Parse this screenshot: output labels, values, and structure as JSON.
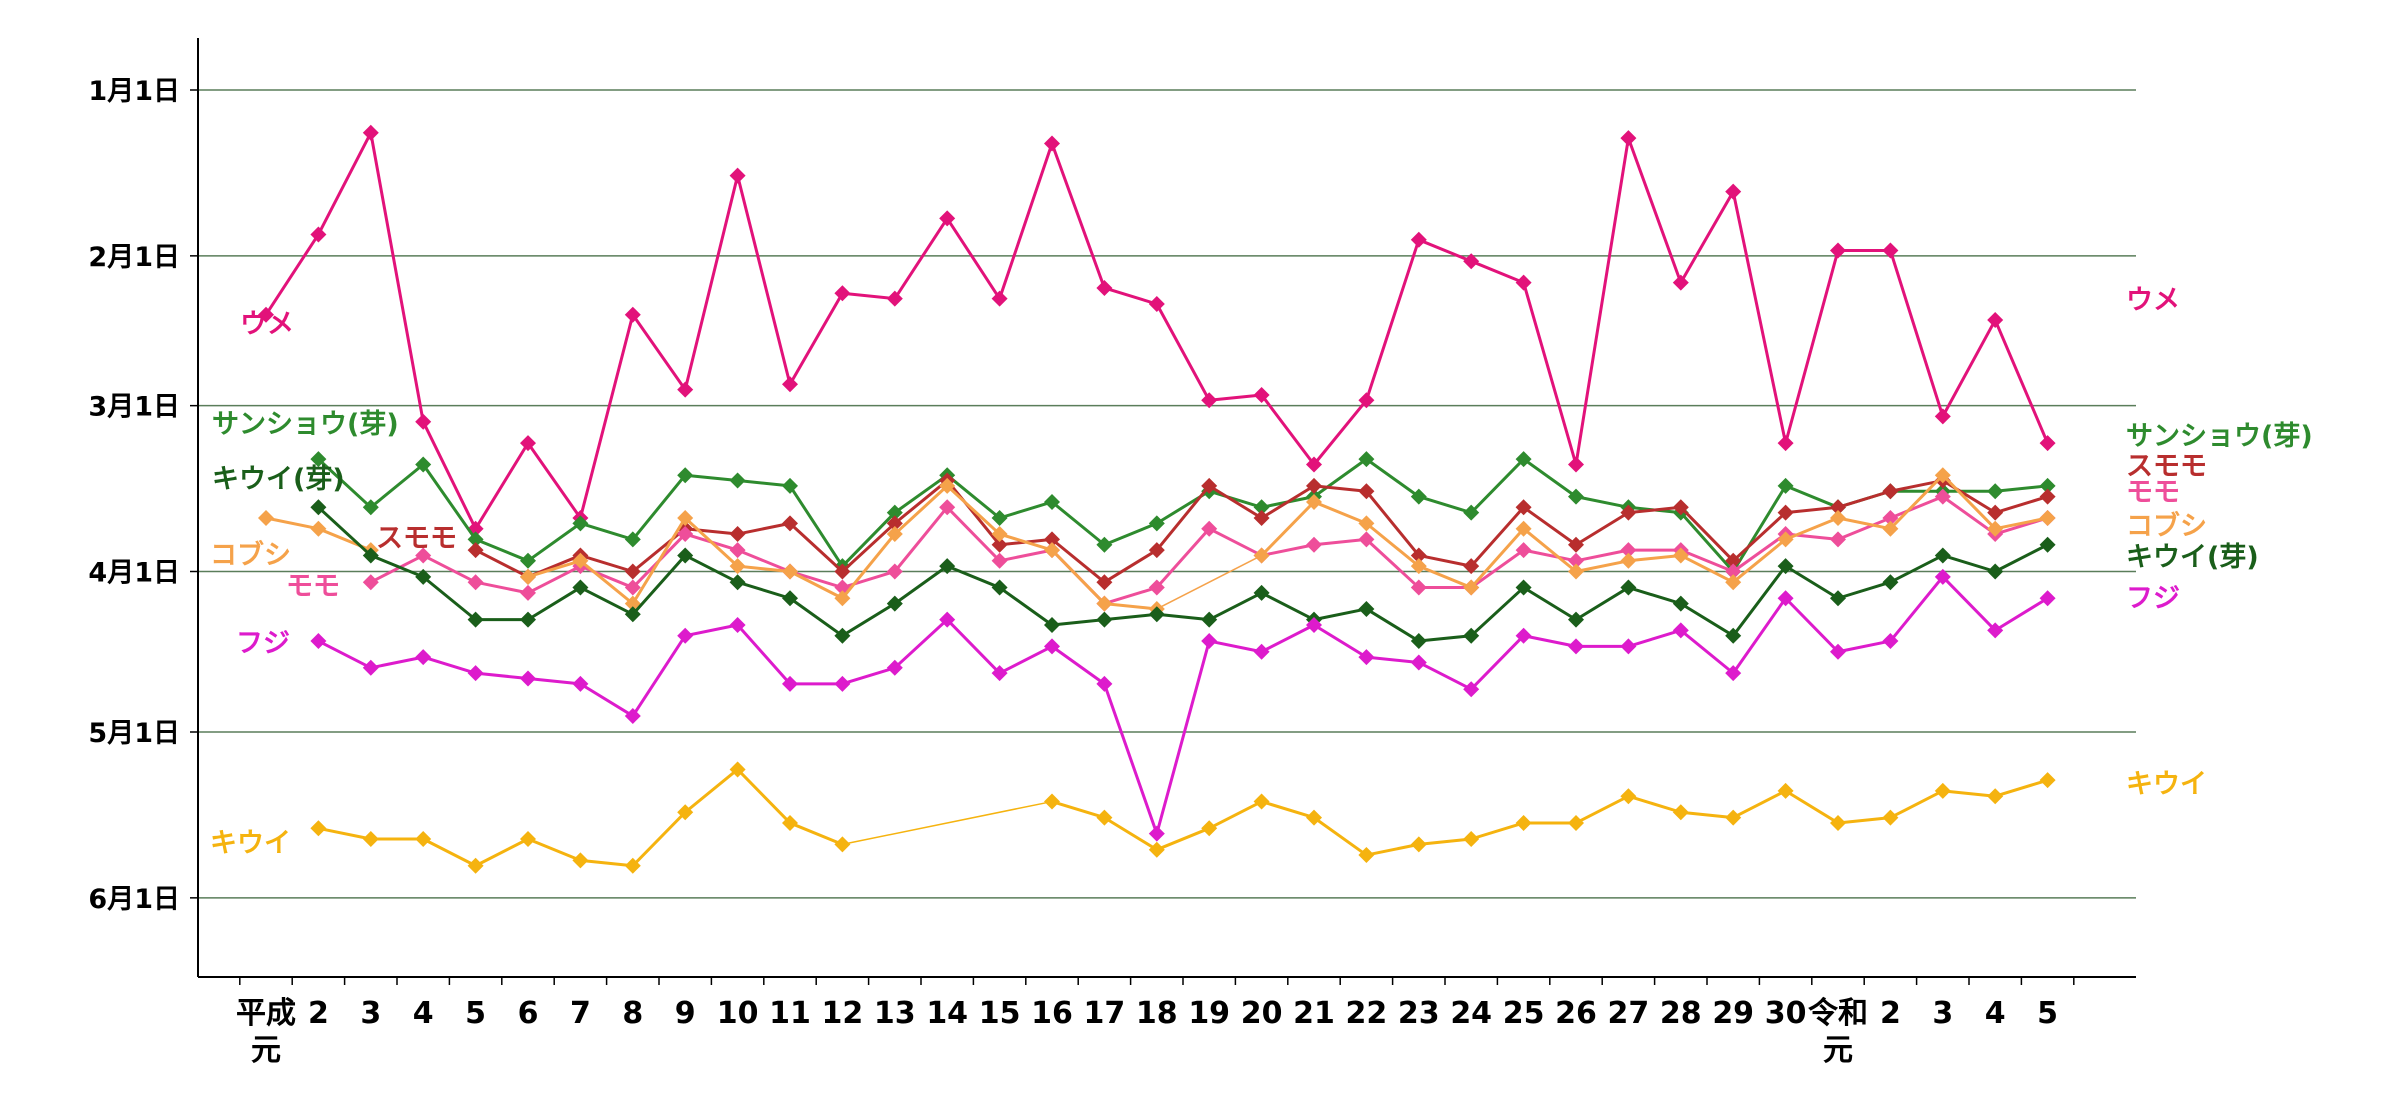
{
  "chart_data": {
    "type": "line",
    "y_axis": {
      "range": [
        "12-22",
        "06-20"
      ],
      "ticks": [
        {
          "label": "1月1日",
          "date": "01-01"
        },
        {
          "label": "2月1日",
          "date": "02-01"
        },
        {
          "label": "3月1日",
          "date": "03-01"
        },
        {
          "label": "4月1日",
          "date": "04-01"
        },
        {
          "label": "5月1日",
          "date": "05-01"
        },
        {
          "label": "6月1日",
          "date": "06-01"
        }
      ]
    },
    "x_axis": {
      "categories": [
        "平成元",
        "2",
        "3",
        "4",
        "5",
        "6",
        "7",
        "8",
        "9",
        "10",
        "11",
        "12",
        "13",
        "14",
        "15",
        "16",
        "17",
        "18",
        "19",
        "20",
        "21",
        "22",
        "23",
        "24",
        "25",
        "26",
        "27",
        "28",
        "29",
        "30",
        "令和元",
        "2",
        "3",
        "4",
        "5"
      ],
      "tick_labels": [
        {
          "line1": "平成",
          "line2": "元"
        },
        {
          "line1": "2"
        },
        {
          "line1": "3"
        },
        {
          "line1": "4"
        },
        {
          "line1": "5"
        },
        {
          "line1": "6"
        },
        {
          "line1": "7"
        },
        {
          "line1": "8"
        },
        {
          "line1": "9"
        },
        {
          "line1": "10"
        },
        {
          "line1": "11"
        },
        {
          "line1": "12"
        },
        {
          "line1": "13"
        },
        {
          "line1": "14"
        },
        {
          "line1": "15"
        },
        {
          "line1": "16"
        },
        {
          "line1": "17"
        },
        {
          "line1": "18"
        },
        {
          "line1": "19"
        },
        {
          "line1": "20"
        },
        {
          "line1": "21"
        },
        {
          "line1": "22"
        },
        {
          "line1": "23"
        },
        {
          "line1": "24"
        },
        {
          "line1": "25"
        },
        {
          "line1": "26"
        },
        {
          "line1": "27"
        },
        {
          "line1": "28"
        },
        {
          "line1": "29"
        },
        {
          "line1": "30"
        },
        {
          "line1": "令和",
          "line2": "元"
        },
        {
          "line1": "2"
        },
        {
          "line1": "3"
        },
        {
          "line1": "4"
        },
        {
          "line1": "5"
        }
      ]
    },
    "grid": "horizontal",
    "series": [
      {
        "name": "ウメ",
        "color": "#e2127a",
        "values": [
          "02-12",
          "01-28",
          "01-09",
          "03-04",
          "03-24",
          "03-08",
          "03-22",
          "02-12",
          "02-26",
          "01-17",
          "02-25",
          "02-08",
          "02-09",
          "01-25",
          "02-09",
          "01-11",
          "02-07",
          "02-10",
          "02-28",
          "02-27",
          "03-12",
          "02-28",
          "01-29",
          "02-02",
          "02-06",
          "03-12",
          "01-10",
          "02-06",
          "01-20",
          "03-08",
          "01-31",
          "01-31",
          "03-03",
          "02-13",
          "03-08"
        ]
      },
      {
        "name": "サンショウ(芽)",
        "color": "#2e8b2e",
        "values": [
          null,
          "03-11",
          "03-20",
          "03-12",
          "03-26",
          "03-30",
          "03-23",
          "03-26",
          "03-14",
          "03-15",
          "03-16",
          "03-31",
          "03-21",
          "03-14",
          "03-22",
          "03-19",
          "03-27",
          "03-23",
          "03-17",
          "03-20",
          "03-18",
          "03-11",
          "03-18",
          "03-21",
          "03-11",
          "03-18",
          "03-20",
          "03-21",
          "04-01",
          "03-16",
          "03-20",
          "03-17",
          "03-17",
          "03-17",
          "03-16"
        ]
      },
      {
        "name": "スモモ",
        "color": "#b82e2e",
        "values": [
          null,
          null,
          null,
          null,
          "03-28",
          "04-02",
          "03-29",
          "04-01",
          "03-24",
          "03-25",
          "03-23",
          "04-01",
          "03-23",
          "03-15",
          "03-27",
          "03-26",
          "04-03",
          "03-28",
          "03-16",
          "03-22",
          "03-16",
          "03-17",
          "03-29",
          "03-31",
          "03-20",
          "03-27",
          "03-21",
          "03-20",
          "03-30",
          "03-21",
          "03-20",
          "03-17",
          "03-15",
          "03-21",
          "03-18"
        ]
      },
      {
        "name": "モモ",
        "color": "#ee4e9a",
        "values": [
          null,
          null,
          "04-03",
          "03-29",
          "04-03",
          "04-05",
          "03-31",
          "04-04",
          "03-25",
          "03-28",
          "04-01",
          "04-04",
          "04-01",
          "03-20",
          "03-30",
          "03-28",
          "04-07",
          "04-04",
          "03-24",
          "03-29",
          "03-27",
          "03-26",
          "04-04",
          "04-04",
          "03-28",
          "03-30",
          "03-28",
          "03-28",
          "04-01",
          "03-25",
          "03-26",
          "03-22",
          "03-18",
          "03-25",
          "03-22"
        ]
      },
      {
        "name": "コブシ",
        "color": "#f5a24a",
        "values": [
          "03-22",
          "03-24",
          "03-28",
          null,
          null,
          "04-02",
          "03-30",
          "04-07",
          "03-22",
          "03-31",
          "04-01",
          "04-06",
          "03-25",
          "03-16",
          "03-25",
          "03-28",
          "04-07",
          "04-08",
          null,
          "03-29",
          "03-19",
          "03-23",
          "03-31",
          "04-04",
          "03-24",
          "04-01",
          "03-30",
          "03-29",
          "04-03",
          "03-26",
          "03-22",
          "03-24",
          "03-14",
          "03-24",
          "03-22"
        ]
      },
      {
        "name": "キウイ(芽)",
        "color": "#1a5e1a",
        "values": [
          null,
          "03-20",
          "03-29",
          "04-02",
          "04-10",
          "04-10",
          "04-04",
          "04-09",
          "03-29",
          "04-03",
          "04-06",
          "04-13",
          "04-07",
          "03-31",
          "04-04",
          "04-11",
          "04-10",
          "04-09",
          "04-10",
          "04-05",
          "04-10",
          "04-08",
          "04-14",
          "04-13",
          "04-04",
          "04-10",
          "04-04",
          "04-07",
          "04-13",
          "03-31",
          "04-06",
          "04-03",
          "03-29",
          "04-01",
          "03-27"
        ]
      },
      {
        "name": "フジ",
        "color": "#dd1bcc",
        "values": [
          null,
          "04-14",
          "04-19",
          "04-17",
          "04-20",
          "04-21",
          "04-22",
          "04-28",
          "04-13",
          "04-11",
          "04-22",
          "04-22",
          "04-19",
          "04-10",
          "04-20",
          "04-15",
          "04-22",
          "05-20",
          "04-14",
          "04-16",
          "04-11",
          "04-17",
          "04-18",
          "04-23",
          "04-13",
          "04-15",
          "04-15",
          "04-12",
          "04-20",
          "04-06",
          "04-16",
          "04-14",
          "04-02",
          "04-12",
          "04-06"
        ]
      },
      {
        "name": "キウイ",
        "color": "#f5b30f",
        "values": [
          null,
          "05-19",
          "05-21",
          "05-21",
          "05-26",
          "05-21",
          "05-25",
          "05-26",
          "05-16",
          "05-08",
          "05-18",
          "05-22",
          null,
          null,
          null,
          "05-14",
          "05-17",
          "05-23",
          "05-19",
          "05-14",
          "05-17",
          "05-24",
          "05-22",
          "05-21",
          "05-18",
          "05-18",
          "05-13",
          "05-16",
          "05-17",
          "05-12",
          "05-18",
          "05-17",
          "05-12",
          "05-13",
          "05-10"
        ]
      }
    ],
    "gap_connectors": [
      {
        "series": "キウイ",
        "from": "12",
        "to": "16",
        "style": "thin line"
      },
      {
        "series": "コブシ",
        "from": "18",
        "to": "20",
        "style": "thin line"
      }
    ],
    "labels_left": [
      {
        "text": "ウメ",
        "series": "ウメ"
      },
      {
        "text": "サンショウ(芽)",
        "series": "サンショウ(芽)"
      },
      {
        "text": "キウイ(芽)",
        "series": "キウイ(芽)"
      },
      {
        "text": "スモモ",
        "series": "スモモ"
      },
      {
        "text": "コブシ",
        "series": "コブシ"
      },
      {
        "text": "モモ",
        "series": "モモ"
      },
      {
        "text": "フジ",
        "series": "フジ"
      },
      {
        "text": "キウイ",
        "series": "キウイ"
      }
    ],
    "labels_right": [
      {
        "text": "ウメ",
        "series": "ウメ"
      },
      {
        "text": "サンショウ(芽)",
        "series": "サンショウ(芽)"
      },
      {
        "text": "スモモ",
        "series": "スモモ"
      },
      {
        "text": "モモ",
        "series": "モモ"
      },
      {
        "text": "コブシ",
        "series": "コブシ"
      },
      {
        "text": "キウイ(芽)",
        "series": "キウイ(芽)"
      },
      {
        "text": "フジ",
        "series": "フジ"
      },
      {
        "text": "キウイ",
        "series": "キウイ"
      }
    ],
    "colors": {
      "grid": "#5a7d5a",
      "axis": "#000000"
    }
  }
}
